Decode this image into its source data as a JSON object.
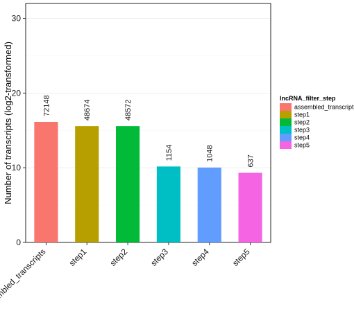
{
  "chart_data": {
    "type": "bar",
    "categories": [
      "assembled_transcripts",
      "step1",
      "step2",
      "step3",
      "step4",
      "step5"
    ],
    "values": [
      16.14,
      15.57,
      15.57,
      10.17,
      10.03,
      9.32
    ],
    "data_labels": [
      "72148",
      "48674",
      "48572",
      "1154",
      "1048",
      "637"
    ],
    "colors": [
      "#F8766D",
      "#B79F00",
      "#00BA38",
      "#00BFC4",
      "#619CFF",
      "#F564E3"
    ],
    "title": "",
    "xlabel": "",
    "ylabel": "Number of transcripts (log2-transformed)",
    "ylim": [
      0,
      30
    ],
    "yticks": [
      0,
      10,
      20,
      30
    ],
    "grid": true,
    "legend": {
      "title": "lncRNA_filter_step",
      "placement": "right",
      "entries": [
        "assembled_transcripts",
        "step1",
        "step2",
        "step3",
        "step4",
        "step5"
      ]
    }
  }
}
